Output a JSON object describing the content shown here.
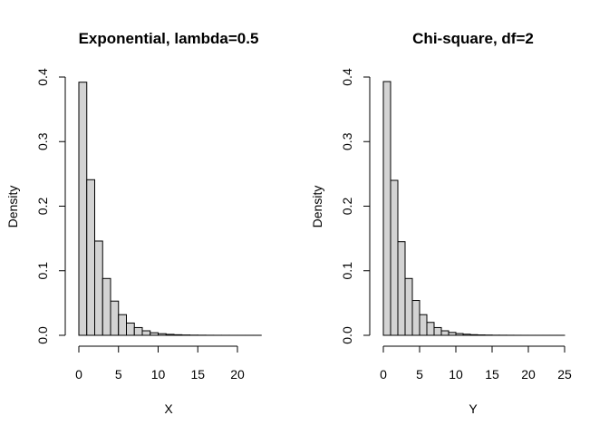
{
  "chart_data": [
    {
      "type": "bar",
      "title": "Exponential, lambda=0.5",
      "xlabel": "X",
      "ylabel": "Density",
      "xlim": [
        0,
        22.5
      ],
      "ylim": [
        0,
        0.4
      ],
      "xticks": [
        0,
        5,
        10,
        15,
        20
      ],
      "yticks": [
        0.0,
        0.1,
        0.2,
        0.3,
        0.4
      ],
      "ytick_labels": [
        "0.0",
        "0.1",
        "0.2",
        "0.3",
        "0.4"
      ],
      "bin_width": 1,
      "bin_starts": [
        0,
        1,
        2,
        3,
        4,
        5,
        6,
        7,
        8,
        9,
        10,
        11,
        12,
        13,
        14,
        15,
        16,
        17,
        18,
        19,
        20,
        21,
        22
      ],
      "values": [
        0.392,
        0.241,
        0.146,
        0.088,
        0.053,
        0.032,
        0.019,
        0.012,
        0.007,
        0.004,
        0.0025,
        0.0015,
        0.0009,
        0.0005,
        0.0003,
        0.0002,
        0.0001,
        6e-05,
        4e-05,
        2e-05,
        1e-05,
        1e-05,
        1e-05
      ],
      "grid": false,
      "legend": "none"
    },
    {
      "type": "bar",
      "title": "Chi-square, df=2",
      "xlabel": "Y",
      "ylabel": "Density",
      "xlim": [
        0,
        25
      ],
      "ylim": [
        0,
        0.4
      ],
      "xticks": [
        0,
        5,
        10,
        15,
        20,
        25
      ],
      "yticks": [
        0.0,
        0.1,
        0.2,
        0.3,
        0.4
      ],
      "ytick_labels": [
        "0.0",
        "0.1",
        "0.2",
        "0.3",
        "0.4"
      ],
      "bin_width": 1,
      "bin_starts": [
        0,
        1,
        2,
        3,
        4,
        5,
        6,
        7,
        8,
        9,
        10,
        11,
        12,
        13,
        14,
        15,
        16,
        17,
        18,
        19,
        20,
        21,
        22,
        23,
        24
      ],
      "values": [
        0.393,
        0.24,
        0.145,
        0.088,
        0.054,
        0.032,
        0.02,
        0.012,
        0.007,
        0.0045,
        0.0027,
        0.0017,
        0.001,
        0.0006,
        0.0004,
        0.0002,
        0.00015,
        0.0001,
        5e-05,
        3e-05,
        2e-05,
        1e-05,
        1e-05,
        1e-05,
        1e-05
      ],
      "grid": false,
      "legend": "none"
    }
  ]
}
